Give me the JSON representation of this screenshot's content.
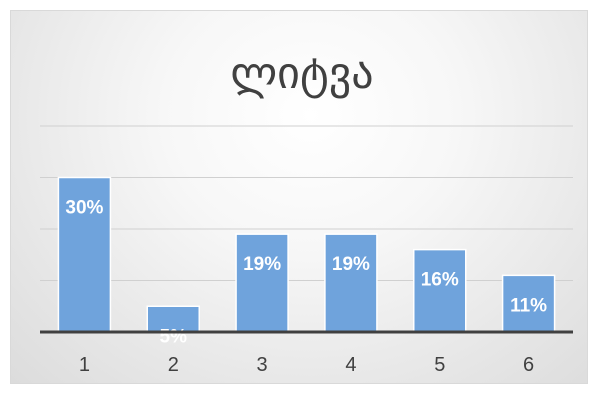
{
  "chart_data": {
    "type": "bar",
    "title": "ლიტვა",
    "categories": [
      "1",
      "2",
      "3",
      "4",
      "5",
      "6"
    ],
    "values": [
      30,
      5,
      19,
      19,
      16,
      11
    ],
    "data_labels": [
      "30%",
      "5%",
      "19%",
      "19%",
      "16%",
      "11%"
    ],
    "ylim": [
      0,
      40
    ],
    "grid": true,
    "legend": "none",
    "colors": {
      "bar": "#6fa3dc",
      "bar_border": "#ffffff",
      "grid": "#d0d0d0",
      "axis": "#404040",
      "label": "#ffffff"
    }
  }
}
